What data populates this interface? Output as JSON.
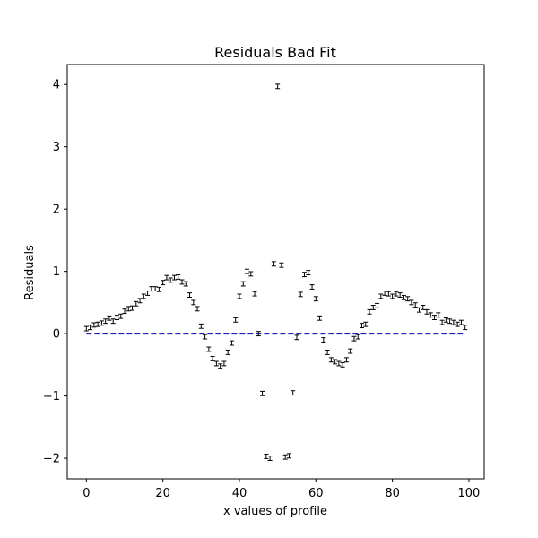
{
  "chart_data": {
    "type": "scatter",
    "title": "Residuals Bad Fit",
    "xlabel": "x values of profile",
    "ylabel": "Residuals",
    "xlim": [
      -5,
      104
    ],
    "ylim": [
      -2.33,
      4.32
    ],
    "grid": false,
    "x_ticks": [
      0,
      20,
      40,
      60,
      80,
      100
    ],
    "x_tick_labels": [
      "0",
      "20",
      "40",
      "60",
      "80",
      "100"
    ],
    "y_ticks": [
      -2,
      -1,
      0,
      1,
      2,
      3,
      4
    ],
    "y_tick_labels": [
      "−2",
      "−1",
      "0",
      "1",
      "2",
      "3",
      "4"
    ],
    "reference_line": {
      "y": 0,
      "x_range": [
        0,
        99
      ],
      "style": "dashed",
      "color": "#0000b0"
    },
    "marker_color": "#000000",
    "series": [
      {
        "style": "errorbar",
        "x": [
          0,
          1,
          2,
          3,
          4,
          5,
          6,
          7,
          8,
          9,
          10,
          11,
          12,
          13,
          14,
          15,
          16,
          17,
          18,
          19,
          20,
          21,
          22,
          23,
          24,
          25,
          26,
          27,
          28,
          29,
          30,
          31,
          32,
          33,
          34,
          35,
          36,
          37,
          38,
          39,
          40,
          41,
          42,
          43,
          44,
          45,
          46,
          47,
          48,
          49,
          50,
          51,
          52,
          53,
          54,
          55,
          56,
          57,
          58,
          59,
          60,
          61,
          62,
          63,
          64,
          65,
          66,
          67,
          68,
          69,
          70,
          71,
          72,
          73,
          74,
          75,
          76,
          77,
          78,
          79,
          80,
          81,
          82,
          83,
          84,
          85,
          86,
          87,
          88,
          89,
          90,
          91,
          92,
          93,
          94,
          95,
          96,
          97,
          98,
          99
        ],
        "y": [
          0.08,
          0.1,
          0.14,
          0.15,
          0.17,
          0.2,
          0.25,
          0.2,
          0.26,
          0.28,
          0.36,
          0.4,
          0.41,
          0.48,
          0.53,
          0.6,
          0.65,
          0.72,
          0.72,
          0.71,
          0.82,
          0.9,
          0.86,
          0.9,
          0.91,
          0.83,
          0.8,
          0.62,
          0.5,
          0.4,
          0.12,
          -0.05,
          -0.25,
          -0.4,
          -0.48,
          -0.52,
          -0.48,
          -0.3,
          -0.15,
          0.22,
          0.6,
          0.8,
          1.0,
          0.96,
          0.64,
          0.0,
          -0.96,
          -1.97,
          -2.0,
          1.12,
          3.97,
          1.1,
          -1.98,
          -1.96,
          -0.95,
          -0.06,
          0.63,
          0.95,
          0.98,
          0.75,
          0.56,
          0.25,
          -0.1,
          -0.3,
          -0.42,
          -0.45,
          -0.48,
          -0.5,
          -0.42,
          -0.28,
          -0.08,
          -0.05,
          0.13,
          0.15,
          0.35,
          0.42,
          0.45,
          0.6,
          0.65,
          0.64,
          0.6,
          0.64,
          0.62,
          0.58,
          0.56,
          0.5,
          0.46,
          0.38,
          0.42,
          0.35,
          0.3,
          0.26,
          0.3,
          0.18,
          0.22,
          0.2,
          0.18,
          0.15,
          0.18,
          0.1
        ],
        "yerr": 0.035
      }
    ]
  }
}
